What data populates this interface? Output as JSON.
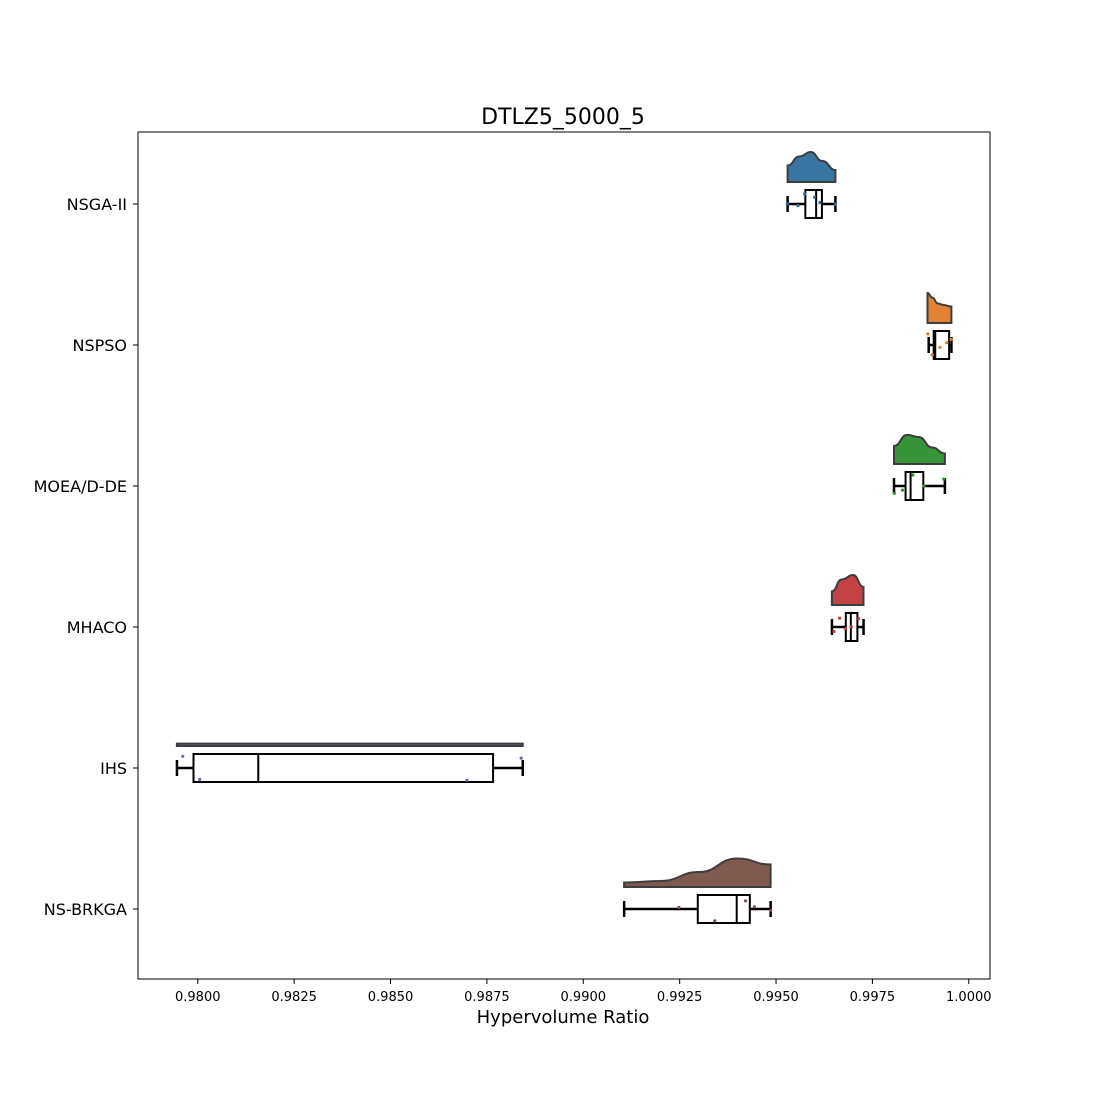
{
  "chart_data": {
    "type": "raincloud",
    "title": "DTLZ5_5000_5",
    "xlabel": "Hypervolume Ratio",
    "ylabel": "",
    "xlim": [
      0.97845,
      1.00055
    ],
    "xticks": [
      0.98,
      0.9825,
      0.985,
      0.9875,
      0.99,
      0.9925,
      0.995,
      0.9975,
      1.0
    ],
    "xtick_labels": [
      "0.9800",
      "0.9825",
      "0.9850",
      "0.9875",
      "0.9900",
      "0.9925",
      "0.9950",
      "0.9975",
      "1.0000"
    ],
    "grid": false,
    "series": [
      {
        "name": "NSGA-II",
        "color": "#2e6e9e",
        "box": {
          "whislo": 0.9953,
          "q1": 0.99576,
          "median": 0.99604,
          "q3": 0.99619,
          "whishi": 0.99654
        },
        "points": [
          0.99529,
          0.99557,
          0.99574,
          0.996,
          0.99614,
          0.99654
        ],
        "density": {
          "x": [
            0.9953,
            0.9956,
            0.9959,
            0.9962,
            0.99654
          ],
          "y": [
            0.55,
            0.85,
            1.0,
            0.7,
            0.4
          ]
        }
      },
      {
        "name": "NSPSO",
        "color": "#e07b2a",
        "box": {
          "whislo": 0.99896,
          "q1": 0.99909,
          "median": 0.99913,
          "q3": 0.99949,
          "whishi": 0.99955
        },
        "points": [
          0.99894,
          0.99905,
          0.99925,
          0.99943,
          0.99954
        ],
        "density": {
          "x": [
            0.99893,
            0.99905,
            0.9992,
            0.99935,
            0.99955
          ],
          "y": [
            1.0,
            0.85,
            0.65,
            0.6,
            0.55
          ]
        }
      },
      {
        "name": "MOEA/D-DE",
        "color": "#2e8f2e",
        "box": {
          "whislo": 0.99806,
          "q1": 0.99836,
          "median": 0.99849,
          "q3": 0.99882,
          "whishi": 0.99938
        },
        "points": [
          0.99807,
          0.99828,
          0.99855,
          0.99884,
          0.99935
        ],
        "density": {
          "x": [
            0.99806,
            0.9984,
            0.9987,
            0.99905,
            0.99938
          ],
          "y": [
            0.6,
            0.97,
            0.9,
            0.55,
            0.35
          ]
        }
      },
      {
        "name": "MHACO",
        "color": "#c0393b",
        "box": {
          "whislo": 0.99645,
          "q1": 0.99681,
          "median": 0.99694,
          "q3": 0.99711,
          "whishi": 0.99727
        },
        "points": [
          0.9965,
          0.99665,
          0.9968,
          0.99695,
          0.99714
        ],
        "density": {
          "x": [
            0.99645,
            0.9967,
            0.997,
            0.99727
          ],
          "y": [
            0.45,
            0.85,
            1.0,
            0.6
          ]
        }
      },
      {
        "name": "IHS",
        "color": "#7f5fa5",
        "box": {
          "whislo": 0.97946,
          "q1": 0.97989,
          "median": 0.98157,
          "q3": 0.98766,
          "whishi": 0.98843
        },
        "points": [
          0.97961,
          0.98005,
          0.98698,
          0.98839
        ],
        "density": {
          "x": [
            0.97946,
            0.984,
            0.98843
          ],
          "y": [
            0.08,
            0.08,
            0.08
          ]
        }
      },
      {
        "name": "NS-BRKGA",
        "color": "#7a5248",
        "box": {
          "whislo": 0.99106,
          "q1": 0.99297,
          "median": 0.99398,
          "q3": 0.99432,
          "whishi": 0.99486
        },
        "points": [
          0.99248,
          0.99341,
          0.99421,
          0.99444,
          0.99486
        ],
        "density": {
          "x": [
            0.99106,
            0.992,
            0.993,
            0.994,
            0.99486
          ],
          "y": [
            0.15,
            0.2,
            0.5,
            0.95,
            0.75
          ]
        }
      }
    ]
  }
}
